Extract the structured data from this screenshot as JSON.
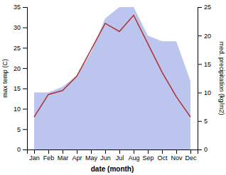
{
  "chart_data": {
    "type": "line",
    "categories": [
      "Jan",
      "Feb",
      "Mar",
      "Apr",
      "May",
      "Jun",
      "Jul",
      "Aug",
      "Sep",
      "Oct",
      "Nov",
      "Dec"
    ],
    "series": [
      {
        "type": "area",
        "axis": "y2",
        "color": "#bbc5ee",
        "values": [
          10,
          10,
          11,
          13,
          17,
          23,
          25,
          25,
          20,
          19,
          19,
          12
        ]
      },
      {
        "type": "line",
        "color": "#b03030",
        "values": [
          8,
          13.5,
          14.5,
          18,
          24.5,
          31,
          29,
          33,
          26,
          19,
          13,
          8
        ]
      }
    ],
    "xlabel": "date (month)",
    "ylabel": "max temp (C)",
    "y2label": "med. precipitation (kg/m2)",
    "ylim": [
      0,
      35
    ],
    "yticks": [
      0,
      5,
      10,
      15,
      20,
      25,
      30,
      35
    ],
    "y2lim": [
      0,
      25
    ],
    "y2ticks": [
      0,
      5,
      10,
      15,
      20,
      25
    ]
  }
}
